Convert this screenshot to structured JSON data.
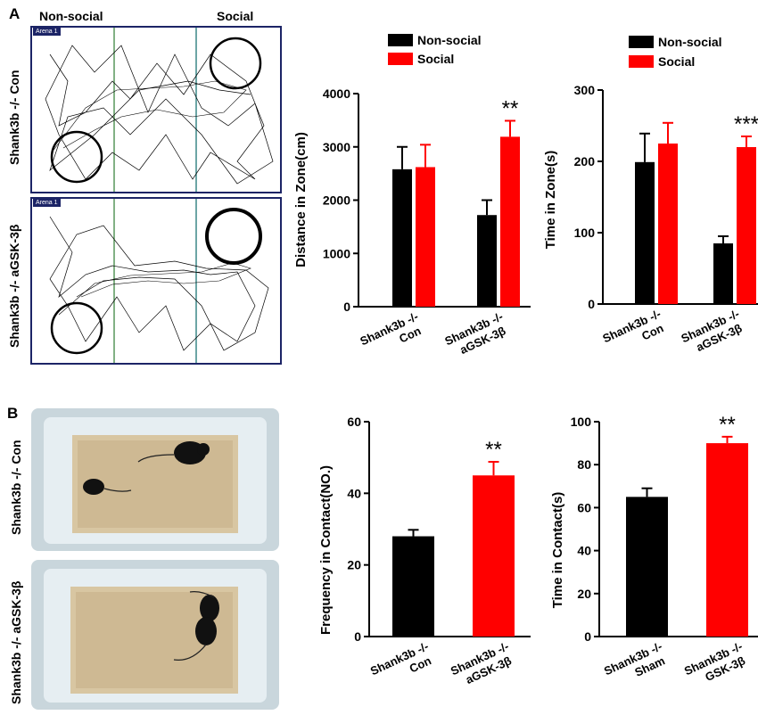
{
  "panels": {
    "a_label": "A",
    "b_label": "B",
    "a_col_left": "Non-social",
    "a_col_right": "Social",
    "arena_tag": "Arena 1",
    "row_labels": {
      "a_top": "Shank3b -/- Con",
      "a_bottom": "Shank3b -/- aGSK-3β",
      "b_top": "Shank3b -/- Con",
      "b_bottom": "Shank3b -/- aGSK-3β"
    }
  },
  "colors": {
    "non_social": "#000000",
    "social": "#ff0000"
  },
  "chart_data": [
    {
      "id": "distance",
      "type": "bar",
      "ylabel": "Distance in Zone(cm)",
      "ylim": [
        0,
        4000
      ],
      "yticks": [
        0,
        1000,
        2000,
        3000,
        4000
      ],
      "legend": [
        "Non-social",
        "Social"
      ],
      "legend_placement": "top",
      "categories": [
        [
          "Shank3b -/-",
          "Con"
        ],
        [
          "Shank3b -/-",
          "aGSK-3β"
        ]
      ],
      "series": [
        {
          "name": "Non-social",
          "color": "#000000",
          "values": [
            2580,
            1720
          ],
          "errors": [
            420,
            280
          ]
        },
        {
          "name": "Social",
          "color": "#ff0000",
          "values": [
            2620,
            3190
          ],
          "errors": [
            420,
            300
          ]
        }
      ],
      "annotations": [
        {
          "text": "**",
          "category": 1,
          "series": 1
        }
      ]
    },
    {
      "id": "time_zone",
      "type": "bar",
      "ylabel": "Time in Zone(s)",
      "ylim": [
        0,
        300
      ],
      "yticks": [
        0,
        100,
        200,
        300
      ],
      "legend": [
        "Non-social",
        "Social"
      ],
      "legend_placement": "top",
      "categories": [
        [
          "Shank3b -/-",
          "Con"
        ],
        [
          "Shank3b -/-",
          "aGSK-3β"
        ]
      ],
      "series": [
        {
          "name": "Non-social",
          "color": "#000000",
          "values": [
            199,
            85
          ],
          "errors": [
            40,
            10
          ]
        },
        {
          "name": "Social",
          "color": "#ff0000",
          "values": [
            225,
            220
          ],
          "errors": [
            29,
            15
          ]
        }
      ],
      "annotations": [
        {
          "text": "***",
          "category": 1,
          "series": 1
        }
      ]
    },
    {
      "id": "frequency",
      "type": "bar",
      "ylabel": "Frequency in Contact(NO.)",
      "ylim": [
        0,
        60
      ],
      "yticks": [
        0,
        20,
        40,
        60
      ],
      "categories": [
        [
          "Shank3b -/-",
          "Con"
        ],
        [
          "Shank3b -/-",
          "aGSK-3β"
        ]
      ],
      "values": [
        28,
        45
      ],
      "errors": [
        1.8,
        3.8
      ],
      "colors": [
        "#000000",
        "#ff0000"
      ],
      "annotations": [
        {
          "text": "**",
          "index": 1
        }
      ]
    },
    {
      "id": "time_contact",
      "type": "bar",
      "ylabel": "Time in Contact(s)",
      "ylim": [
        0,
        100
      ],
      "yticks": [
        0,
        20,
        40,
        60,
        80,
        100
      ],
      "categories": [
        [
          "Shank3b -/-",
          "Sham"
        ],
        [
          "Shank3b -/-",
          "GSK-3β"
        ]
      ],
      "values": [
        65,
        90
      ],
      "errors": [
        4,
        3
      ],
      "colors": [
        "#000000",
        "#ff0000"
      ],
      "annotations": [
        {
          "text": "**",
          "index": 1
        }
      ]
    }
  ]
}
